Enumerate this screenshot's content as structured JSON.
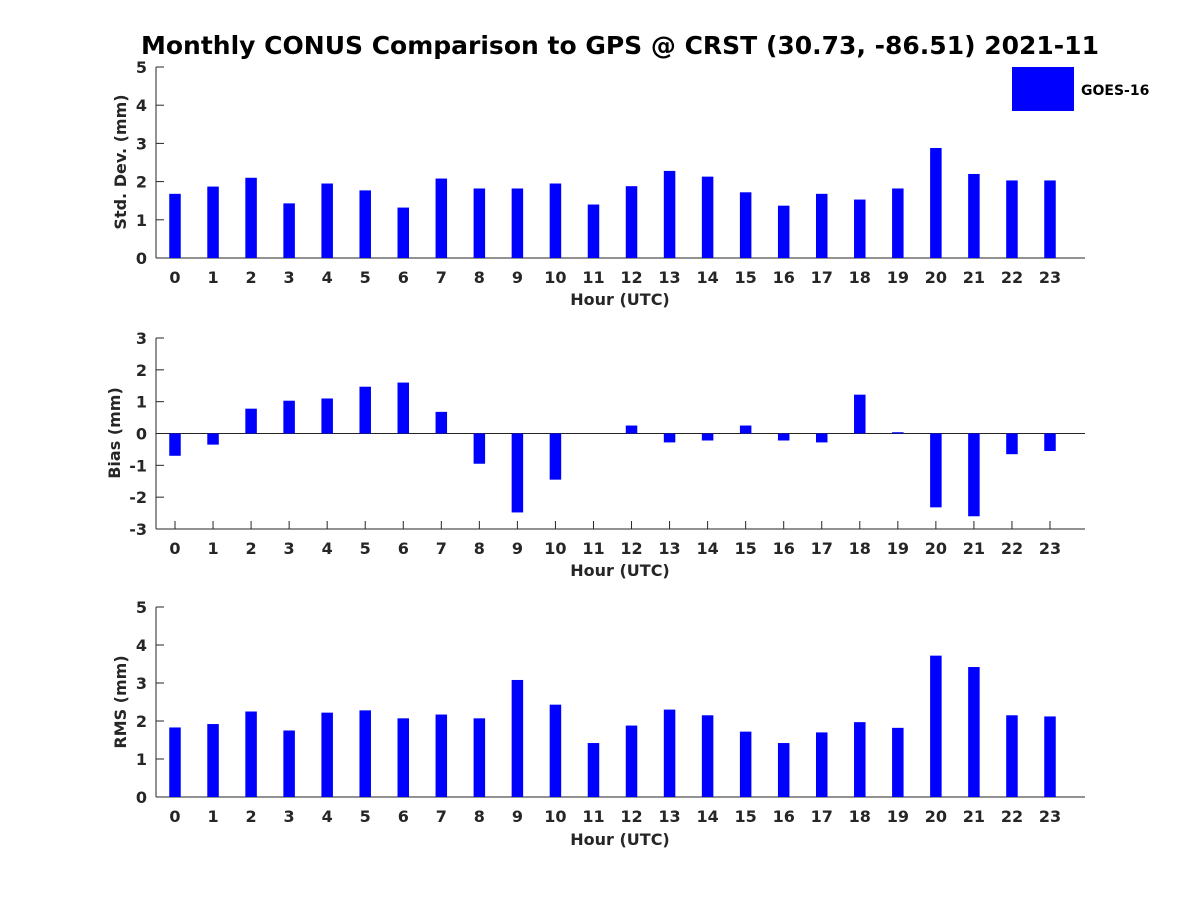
{
  "title": "Monthly CONUS Comparison to GPS @ CRST (30.73, -86.51) 2021-11",
  "legend": {
    "label": "GOES-16",
    "color": "#0000ff",
    "placement": "top-right"
  },
  "chart_data": [
    {
      "type": "bar",
      "xlabel": "Hour (UTC)",
      "ylabel": "Std. Dev. (mm)",
      "ylim": [
        0,
        5
      ],
      "yticks": [
        "0",
        "1",
        "2",
        "3",
        "4",
        "5"
      ],
      "categories": [
        "0",
        "1",
        "2",
        "3",
        "4",
        "5",
        "6",
        "7",
        "8",
        "9",
        "10",
        "11",
        "12",
        "13",
        "14",
        "15",
        "16",
        "17",
        "18",
        "19",
        "20",
        "21",
        "22",
        "23"
      ],
      "series": [
        {
          "name": "GOES-16",
          "values": [
            1.68,
            1.87,
            2.1,
            1.43,
            1.95,
            1.77,
            1.32,
            2.08,
            1.82,
            1.82,
            1.95,
            1.4,
            1.88,
            2.28,
            2.13,
            1.72,
            1.37,
            1.68,
            1.53,
            1.82,
            2.88,
            2.2,
            2.03,
            2.03
          ]
        }
      ]
    },
    {
      "type": "bar",
      "xlabel": "Hour (UTC)",
      "ylabel": "Bias (mm)",
      "ylim": [
        -3,
        3
      ],
      "yticks": [
        "-3",
        "-2",
        "-1",
        "0",
        "1",
        "2",
        "3"
      ],
      "categories": [
        "0",
        "1",
        "2",
        "3",
        "4",
        "5",
        "6",
        "7",
        "8",
        "9",
        "10",
        "11",
        "12",
        "13",
        "14",
        "15",
        "16",
        "17",
        "18",
        "19",
        "20",
        "21",
        "22",
        "23"
      ],
      "series": [
        {
          "name": "GOES-16",
          "values": [
            -0.7,
            -0.35,
            0.78,
            1.03,
            1.1,
            1.47,
            1.6,
            0.68,
            -0.95,
            -2.48,
            -1.45,
            0.0,
            0.25,
            -0.28,
            -0.22,
            0.25,
            -0.22,
            -0.28,
            1.22,
            0.04,
            -2.32,
            -2.6,
            -0.65,
            -0.55
          ]
        }
      ]
    },
    {
      "type": "bar",
      "xlabel": "Hour (UTC)",
      "ylabel": "RMS (mm)",
      "ylim": [
        0,
        5
      ],
      "yticks": [
        "0",
        "1",
        "2",
        "3",
        "4",
        "5"
      ],
      "categories": [
        "0",
        "1",
        "2",
        "3",
        "4",
        "5",
        "6",
        "7",
        "8",
        "9",
        "10",
        "11",
        "12",
        "13",
        "14",
        "15",
        "16",
        "17",
        "18",
        "19",
        "20",
        "21",
        "22",
        "23"
      ],
      "series": [
        {
          "name": "GOES-16",
          "values": [
            1.83,
            1.92,
            2.25,
            1.75,
            2.22,
            2.28,
            2.07,
            2.17,
            2.07,
            3.08,
            2.43,
            1.42,
            1.88,
            2.3,
            2.15,
            1.72,
            1.42,
            1.7,
            1.97,
            1.82,
            3.72,
            3.42,
            2.15,
            2.12
          ]
        }
      ]
    }
  ]
}
